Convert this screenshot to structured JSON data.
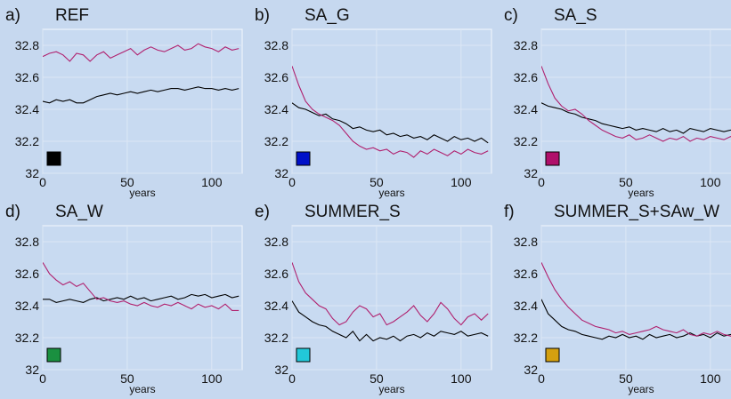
{
  "chart_data": [
    {
      "type": "line",
      "label": "a)",
      "title": "REF",
      "xlabel": "years",
      "marker_color": "#000000",
      "x": [
        0,
        4,
        8,
        12,
        16,
        20,
        24,
        28,
        32,
        36,
        40,
        44,
        48,
        52,
        56,
        60,
        64,
        68,
        72,
        76,
        80,
        84,
        88,
        92,
        96,
        100,
        104,
        108,
        112,
        116
      ],
      "series": [
        {
          "color": "#000000",
          "values": [
            32.45,
            32.44,
            32.46,
            32.45,
            32.46,
            32.44,
            32.44,
            32.46,
            32.48,
            32.49,
            32.5,
            32.49,
            32.5,
            32.51,
            32.5,
            32.51,
            32.52,
            32.51,
            32.52,
            32.53,
            32.53,
            32.52,
            32.53,
            32.54,
            32.53,
            32.53,
            32.52,
            32.53,
            32.52,
            32.53
          ]
        },
        {
          "color": "#b0206e",
          "values": [
            32.73,
            32.75,
            32.76,
            32.74,
            32.7,
            32.75,
            32.74,
            32.7,
            32.74,
            32.76,
            32.72,
            32.74,
            32.76,
            32.78,
            32.74,
            32.77,
            32.79,
            32.77,
            32.76,
            32.78,
            32.8,
            32.77,
            32.78,
            32.81,
            32.79,
            32.78,
            32.76,
            32.79,
            32.77,
            32.78
          ]
        }
      ],
      "xlim": [
        0,
        118
      ],
      "xticks": [
        0,
        50,
        100
      ],
      "ylim": [
        32,
        32.9
      ],
      "yticks": [
        32,
        32.2,
        32.4,
        32.6,
        32.8
      ],
      "grid": true
    },
    {
      "type": "line",
      "label": "b)",
      "title": "SA_G",
      "xlabel": "years",
      "marker_color": "#0010c8",
      "x": [
        0,
        4,
        8,
        12,
        16,
        20,
        24,
        28,
        32,
        36,
        40,
        44,
        48,
        52,
        56,
        60,
        64,
        68,
        72,
        76,
        80,
        84,
        88,
        92,
        96,
        100,
        104,
        108,
        112,
        116
      ],
      "series": [
        {
          "color": "#000000",
          "values": [
            32.44,
            32.41,
            32.4,
            32.38,
            32.36,
            32.37,
            32.34,
            32.33,
            32.31,
            32.28,
            32.29,
            32.27,
            32.26,
            32.27,
            32.24,
            32.25,
            32.23,
            32.24,
            32.22,
            32.23,
            32.21,
            32.24,
            32.22,
            32.2,
            32.23,
            32.21,
            32.22,
            32.2,
            32.22,
            32.19
          ]
        },
        {
          "color": "#b0206e",
          "values": [
            32.67,
            32.55,
            32.45,
            32.4,
            32.37,
            32.35,
            32.33,
            32.3,
            32.25,
            32.2,
            32.17,
            32.15,
            32.16,
            32.14,
            32.15,
            32.12,
            32.14,
            32.13,
            32.1,
            32.14,
            32.12,
            32.15,
            32.13,
            32.11,
            32.14,
            32.12,
            32.15,
            32.13,
            32.12,
            32.14
          ]
        }
      ],
      "xlim": [
        0,
        118
      ],
      "xticks": [
        0,
        50,
        100
      ],
      "ylim": [
        32,
        32.9
      ],
      "yticks": [
        32,
        32.2,
        32.4,
        32.6,
        32.8
      ],
      "grid": true
    },
    {
      "type": "line",
      "label": "c)",
      "title": "SA_S",
      "xlabel": "years",
      "marker_color": "#b0106a",
      "x": [
        0,
        4,
        8,
        12,
        16,
        20,
        24,
        28,
        32,
        36,
        40,
        44,
        48,
        52,
        56,
        60,
        64,
        68,
        72,
        76,
        80,
        84,
        88,
        92,
        96,
        100,
        104,
        108,
        112,
        116
      ],
      "series": [
        {
          "color": "#000000",
          "values": [
            32.44,
            32.42,
            32.41,
            32.4,
            32.38,
            32.37,
            32.35,
            32.34,
            32.33,
            32.31,
            32.3,
            32.29,
            32.28,
            32.29,
            32.27,
            32.28,
            32.27,
            32.26,
            32.28,
            32.26,
            32.27,
            32.25,
            32.28,
            32.27,
            32.26,
            32.28,
            32.27,
            32.26,
            32.27,
            32.28
          ]
        },
        {
          "color": "#b0206e",
          "values": [
            32.67,
            32.56,
            32.47,
            32.42,
            32.39,
            32.4,
            32.37,
            32.33,
            32.3,
            32.27,
            32.25,
            32.23,
            32.22,
            32.24,
            32.21,
            32.22,
            32.24,
            32.22,
            32.2,
            32.22,
            32.21,
            32.23,
            32.2,
            32.22,
            32.21,
            32.23,
            32.22,
            32.21,
            32.23,
            32.2
          ]
        }
      ],
      "xlim": [
        0,
        118
      ],
      "xticks": [
        0,
        50,
        100
      ],
      "ylim": [
        32,
        32.9
      ],
      "yticks": [
        32,
        32.2,
        32.4,
        32.6,
        32.8
      ],
      "grid": true
    },
    {
      "type": "line",
      "label": "d)",
      "title": "SA_W",
      "xlabel": "years",
      "marker_color": "#1a9040",
      "x": [
        0,
        4,
        8,
        12,
        16,
        20,
        24,
        28,
        32,
        36,
        40,
        44,
        48,
        52,
        56,
        60,
        64,
        68,
        72,
        76,
        80,
        84,
        88,
        92,
        96,
        100,
        104,
        108,
        112,
        116
      ],
      "series": [
        {
          "color": "#000000",
          "values": [
            32.44,
            32.44,
            32.42,
            32.43,
            32.44,
            32.43,
            32.42,
            32.44,
            32.45,
            32.43,
            32.44,
            32.45,
            32.44,
            32.46,
            32.44,
            32.45,
            32.43,
            32.44,
            32.45,
            32.46,
            32.44,
            32.45,
            32.47,
            32.46,
            32.47,
            32.45,
            32.46,
            32.47,
            32.45,
            32.46
          ]
        },
        {
          "color": "#b0206e",
          "values": [
            32.67,
            32.6,
            32.56,
            32.53,
            32.55,
            32.52,
            32.54,
            32.49,
            32.44,
            32.45,
            32.43,
            32.42,
            32.43,
            32.41,
            32.4,
            32.42,
            32.4,
            32.39,
            32.41,
            32.4,
            32.42,
            32.4,
            32.38,
            32.41,
            32.39,
            32.4,
            32.38,
            32.41,
            32.37,
            32.37
          ]
        }
      ],
      "xlim": [
        0,
        118
      ],
      "xticks": [
        0,
        50,
        100
      ],
      "ylim": [
        32,
        32.9
      ],
      "yticks": [
        32,
        32.2,
        32.4,
        32.6,
        32.8
      ],
      "grid": true
    },
    {
      "type": "line",
      "label": "e)",
      "title": "SUMMER_S",
      "xlabel": "years",
      "marker_color": "#22c8d8",
      "x": [
        0,
        4,
        8,
        12,
        16,
        20,
        24,
        28,
        32,
        36,
        40,
        44,
        48,
        52,
        56,
        60,
        64,
        68,
        72,
        76,
        80,
        84,
        88,
        92,
        96,
        100,
        104,
        108,
        112,
        116
      ],
      "series": [
        {
          "color": "#000000",
          "values": [
            32.43,
            32.36,
            32.33,
            32.3,
            32.28,
            32.27,
            32.24,
            32.22,
            32.2,
            32.24,
            32.18,
            32.22,
            32.18,
            32.2,
            32.19,
            32.21,
            32.18,
            32.21,
            32.22,
            32.2,
            32.23,
            32.21,
            32.24,
            32.23,
            32.22,
            32.24,
            32.21,
            32.22,
            32.23,
            32.21
          ]
        },
        {
          "color": "#b0206e",
          "values": [
            32.67,
            32.55,
            32.48,
            32.44,
            32.4,
            32.38,
            32.32,
            32.28,
            32.3,
            32.36,
            32.4,
            32.38,
            32.33,
            32.35,
            32.28,
            32.3,
            32.33,
            32.36,
            32.4,
            32.34,
            32.3,
            32.35,
            32.42,
            32.38,
            32.32,
            32.28,
            32.33,
            32.35,
            32.31,
            32.35
          ]
        }
      ],
      "xlim": [
        0,
        118
      ],
      "xticks": [
        0,
        50,
        100
      ],
      "ylim": [
        32,
        32.9
      ],
      "yticks": [
        32,
        32.2,
        32.4,
        32.6,
        32.8
      ],
      "grid": true
    },
    {
      "type": "line",
      "label": "f)",
      "title": "SUMMER_S+SAw_W",
      "xlabel": "years",
      "marker_color": "#d4a010",
      "x": [
        0,
        4,
        8,
        12,
        16,
        20,
        24,
        28,
        32,
        36,
        40,
        44,
        48,
        52,
        56,
        60,
        64,
        68,
        72,
        76,
        80,
        84,
        88,
        92,
        96,
        100,
        104,
        108,
        112,
        116
      ],
      "series": [
        {
          "color": "#000000",
          "values": [
            32.44,
            32.35,
            32.31,
            32.27,
            32.25,
            32.24,
            32.22,
            32.21,
            32.2,
            32.19,
            32.21,
            32.2,
            32.22,
            32.2,
            32.21,
            32.19,
            32.22,
            32.2,
            32.21,
            32.22,
            32.2,
            32.21,
            32.23,
            32.21,
            32.22,
            32.2,
            32.23,
            32.21,
            32.22,
            32.21
          ]
        },
        {
          "color": "#b0206e",
          "values": [
            32.67,
            32.58,
            32.5,
            32.44,
            32.39,
            32.35,
            32.31,
            32.29,
            32.27,
            32.26,
            32.25,
            32.23,
            32.24,
            32.22,
            32.23,
            32.24,
            32.25,
            32.27,
            32.25,
            32.24,
            32.23,
            32.25,
            32.22,
            32.21,
            32.23,
            32.22,
            32.24,
            32.22,
            32.21,
            32.19
          ]
        }
      ],
      "xlim": [
        0,
        118
      ],
      "xticks": [
        0,
        50,
        100
      ],
      "ylim": [
        32,
        32.9
      ],
      "yticks": [
        32,
        32.2,
        32.4,
        32.6,
        32.8
      ],
      "grid": true
    }
  ]
}
